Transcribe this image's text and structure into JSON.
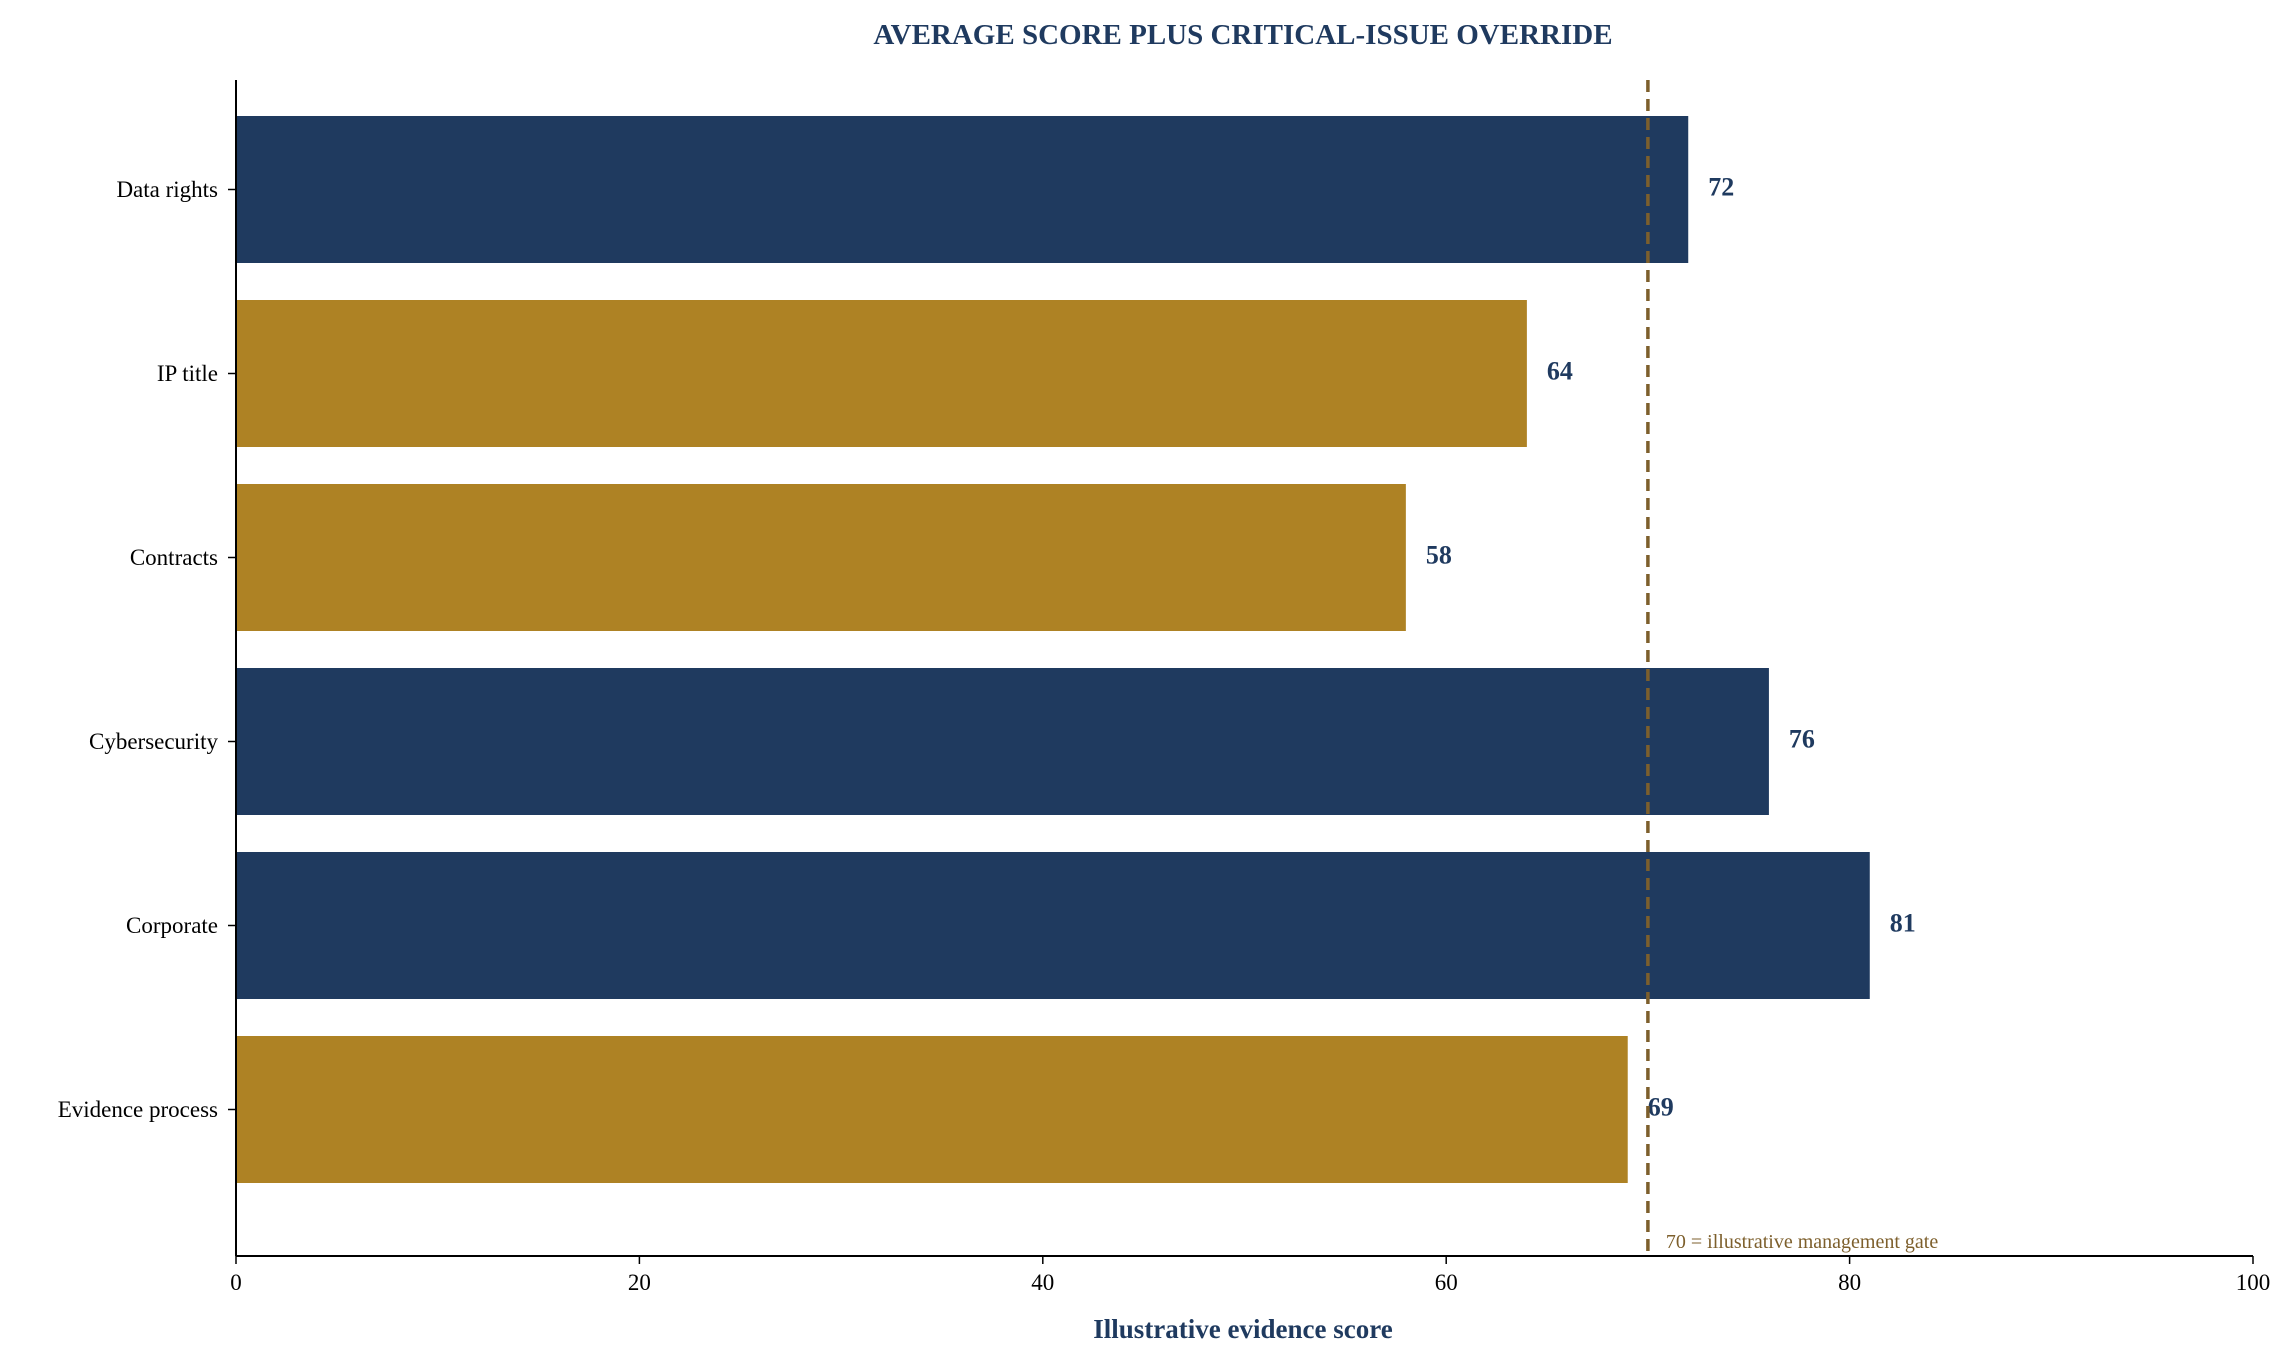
{
  "chart_data": {
    "type": "bar",
    "orientation": "horizontal",
    "title": "AVERAGE SCORE PLUS CRITICAL-ISSUE OVERRIDE",
    "xlabel": "Illustrative evidence score",
    "ylabel": "",
    "xlim": [
      0,
      100
    ],
    "xticks": [
      0,
      20,
      40,
      60,
      80,
      100
    ],
    "categories": [
      "Data rights",
      "IP title",
      "Contracts",
      "Cybersecurity",
      "Corporate",
      "Evidence process"
    ],
    "values": [
      72,
      64,
      58,
      76,
      81,
      69
    ],
    "bar_status": [
      "above",
      "below",
      "below",
      "above",
      "above",
      "below"
    ],
    "reference_line": {
      "value": 70,
      "label": "70 = illustrative management gate"
    },
    "grid": false,
    "colors": {
      "above_gate": "#1f3a5f",
      "below_gate": "#ae8224",
      "reference_line": "#7d5f2c",
      "value_label": "#1f3a5f",
      "title": "#1f3a5f",
      "xlabel": "#1f3a5f",
      "axis": "#000000"
    }
  }
}
